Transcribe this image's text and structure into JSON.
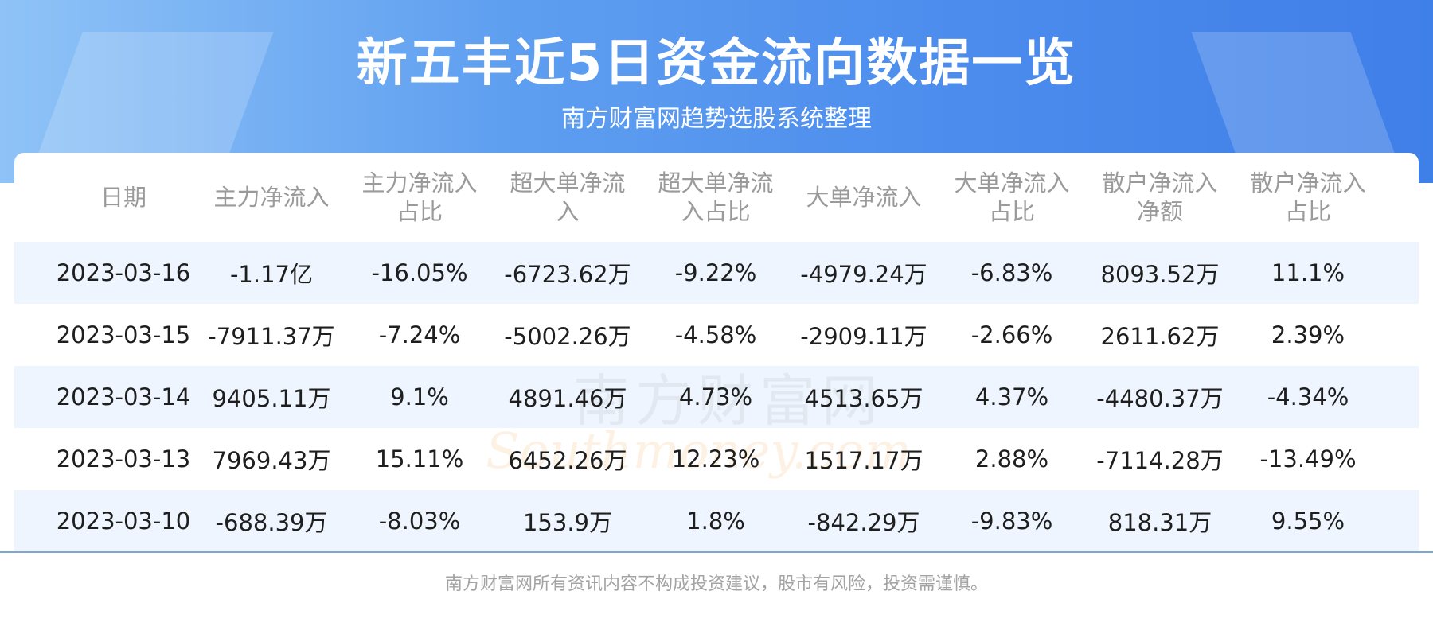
{
  "header": {
    "title": "新五丰近5日资金流向数据一览",
    "subtitle": "南方财富网趋势选股系统整理"
  },
  "table": {
    "columns": [
      "日期",
      "主力净流入",
      "主力净流入占比",
      "超大单净流入",
      "超大单净流入占比",
      "大单净流入",
      "大单净流入占比",
      "散户净流入净额",
      "散户净流入占比"
    ],
    "rows": [
      [
        "2023-03-16",
        "-1.17亿",
        "-16.05%",
        "-6723.62万",
        "-9.22%",
        "-4979.24万",
        "-6.83%",
        "8093.52万",
        "11.1%"
      ],
      [
        "2023-03-15",
        "-7911.37万",
        "-7.24%",
        "-5002.26万",
        "-4.58%",
        "-2909.11万",
        "-2.66%",
        "2611.62万",
        "2.39%"
      ],
      [
        "2023-03-14",
        "9405.11万",
        "9.1%",
        "4891.46万",
        "4.73%",
        "4513.65万",
        "4.37%",
        "-4480.37万",
        "-4.34%"
      ],
      [
        "2023-03-13",
        "7969.43万",
        "15.11%",
        "6452.26万",
        "12.23%",
        "1517.17万",
        "2.88%",
        "-7114.28万",
        "-13.49%"
      ],
      [
        "2023-03-10",
        "-688.39万",
        "-8.03%",
        "153.9万",
        "1.8%",
        "-842.29万",
        "-9.83%",
        "818.31万",
        "9.55%"
      ]
    ]
  },
  "watermark": {
    "name": "南方财富网",
    "url": "Southmoney.com"
  },
  "footer": {
    "disclaimer": "南方财富网所有资讯内容不构成投资建议，股市有风险，投资需谨慎。"
  }
}
